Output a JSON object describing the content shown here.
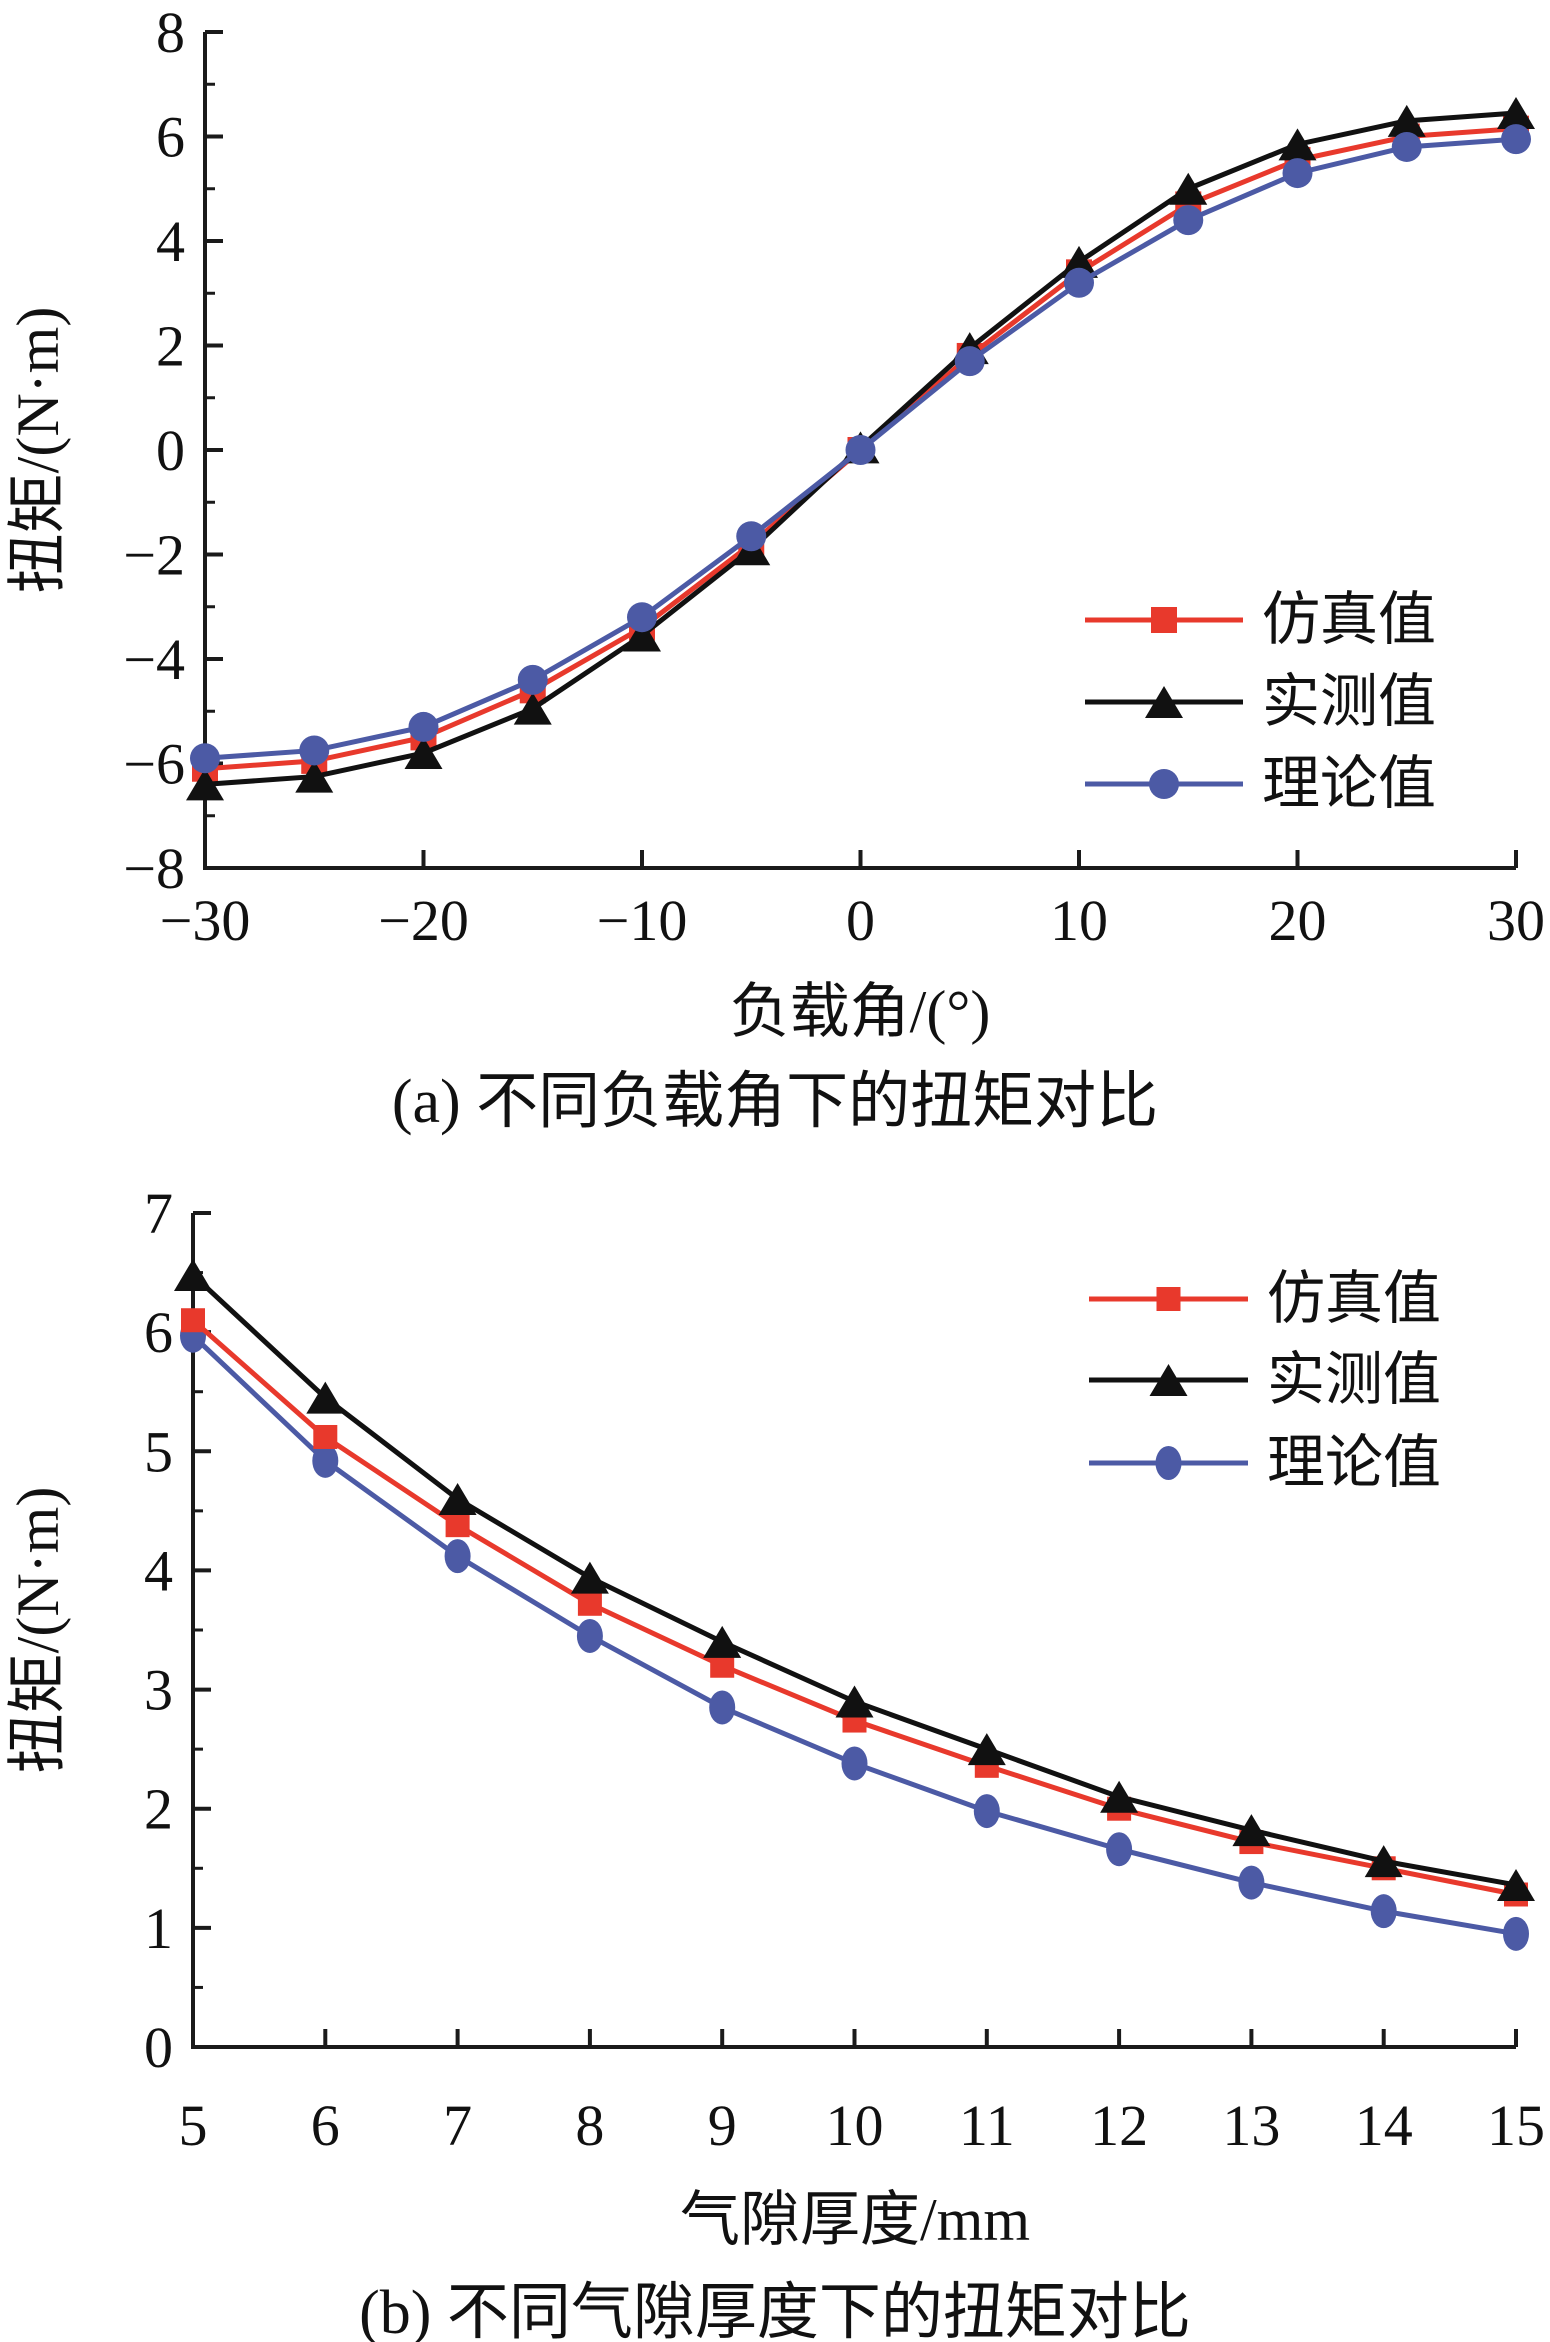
{
  "page": {
    "background": "#ffffff",
    "figure_labels": [
      "(a)",
      "(b)"
    ]
  },
  "colors": {
    "simulation": "#e8392c",
    "measured": "#111111",
    "theoretical": "#4c5aa5",
    "axis": "#1a1a1a"
  },
  "chart_data": [
    {
      "id": "a",
      "type": "line",
      "title": "(a) 不同负载角下的扭矩对比",
      "xlabel": "负载角/(°)",
      "ylabel": "扭矩/(N·m)",
      "xlim": [
        -30,
        30
      ],
      "ylim": [
        -8,
        8
      ],
      "xticks": [
        -30,
        -20,
        -10,
        0,
        10,
        20,
        30
      ],
      "yticks": [
        8,
        6,
        4,
        2,
        0,
        -2,
        -4,
        -6,
        -8
      ],
      "y_minor_step": 1,
      "grid": false,
      "legend_position": "right-middle",
      "x": [
        -30,
        -25,
        -20,
        -15,
        -10,
        -5,
        0,
        5,
        10,
        15,
        20,
        25,
        30
      ],
      "series": [
        {
          "name": "仿真值",
          "marker": "square",
          "color": "#e8392c",
          "values": [
            -6.1,
            -5.95,
            -5.5,
            -4.6,
            -3.4,
            -1.8,
            0.0,
            1.8,
            3.4,
            4.7,
            5.55,
            6.0,
            6.15
          ]
        },
        {
          "name": "实测值",
          "marker": "triangle",
          "color": "#111111",
          "values": [
            -6.4,
            -6.25,
            -5.8,
            -4.95,
            -3.55,
            -1.9,
            0.05,
            1.95,
            3.6,
            5.0,
            5.85,
            6.3,
            6.45
          ]
        },
        {
          "name": "理论值",
          "marker": "circle",
          "color": "#4c5aa5",
          "values": [
            -5.9,
            -5.75,
            -5.3,
            -4.4,
            -3.2,
            -1.65,
            0.0,
            1.7,
            3.2,
            4.4,
            5.3,
            5.8,
            5.95
          ]
        }
      ]
    },
    {
      "id": "b",
      "type": "line",
      "title": "(b) 不同气隙厚度下的扭矩对比",
      "xlabel": "气隙厚度/mm",
      "ylabel": "扭矩/(N·m)",
      "xlim": [
        5,
        15
      ],
      "ylim": [
        0,
        7
      ],
      "xticks": [
        5,
        6,
        7,
        8,
        9,
        10,
        11,
        12,
        13,
        14,
        15
      ],
      "yticks": [
        0,
        1,
        2,
        3,
        4,
        5,
        6,
        7
      ],
      "y_minor_step": 0.5,
      "grid": false,
      "legend_position": "top-right",
      "x": [
        5,
        6,
        7,
        8,
        9,
        10,
        11,
        12,
        13,
        14,
        15
      ],
      "series": [
        {
          "name": "仿真值",
          "marker": "square",
          "color": "#e8392c",
          "values": [
            6.1,
            5.12,
            4.38,
            3.72,
            3.2,
            2.74,
            2.36,
            2.0,
            1.72,
            1.5,
            1.28
          ]
        },
        {
          "name": "实测值",
          "marker": "triangle",
          "color": "#111111",
          "values": [
            6.48,
            5.45,
            4.6,
            3.94,
            3.4,
            2.9,
            2.5,
            2.1,
            1.82,
            1.56,
            1.36
          ]
        },
        {
          "name": "理论值",
          "marker": "circle",
          "color": "#4c5aa5",
          "values": [
            5.97,
            4.92,
            4.12,
            3.45,
            2.85,
            2.38,
            1.98,
            1.66,
            1.38,
            1.14,
            0.95
          ]
        }
      ]
    }
  ]
}
